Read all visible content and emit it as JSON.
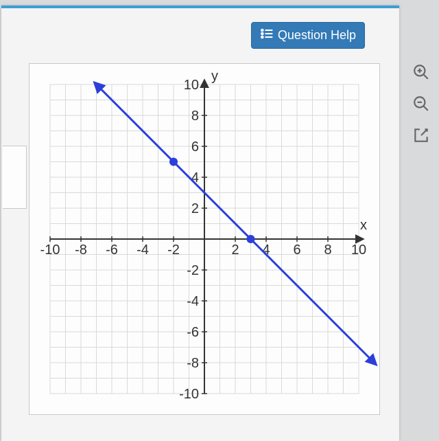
{
  "help_button": {
    "label": "Question Help"
  },
  "chart": {
    "type": "line",
    "xlim": [
      -10,
      10
    ],
    "ylim": [
      -10,
      10
    ],
    "tick_step": 2,
    "x_ticks_labeled": [
      -10,
      -8,
      -6,
      -4,
      -2,
      2,
      4,
      6,
      8,
      10
    ],
    "y_ticks_labeled": [
      -10,
      -8,
      -6,
      -4,
      -2,
      2,
      4,
      6,
      8,
      10
    ],
    "x_axis_label": "x",
    "y_axis_label": "y",
    "grid_color": "#d9d9d9",
    "axis_color": "#333333",
    "background_color": "#fdfdfd",
    "tick_fontsize": 20,
    "line": {
      "color": "#2d3fdb",
      "width": 3,
      "p1": [
        -7,
        10
      ],
      "p2": [
        11,
        -8
      ],
      "arrows_both_ends": true
    },
    "points": [
      {
        "x": -2,
        "y": 5,
        "r": 6,
        "color": "#2d3fdb"
      },
      {
        "x": 3,
        "y": 0,
        "r": 6,
        "color": "#2d3fdb"
      }
    ]
  },
  "tools": {
    "zoom_in": "zoom-in-icon",
    "zoom_out": "zoom-out-icon",
    "open_external": "external-link-icon"
  }
}
